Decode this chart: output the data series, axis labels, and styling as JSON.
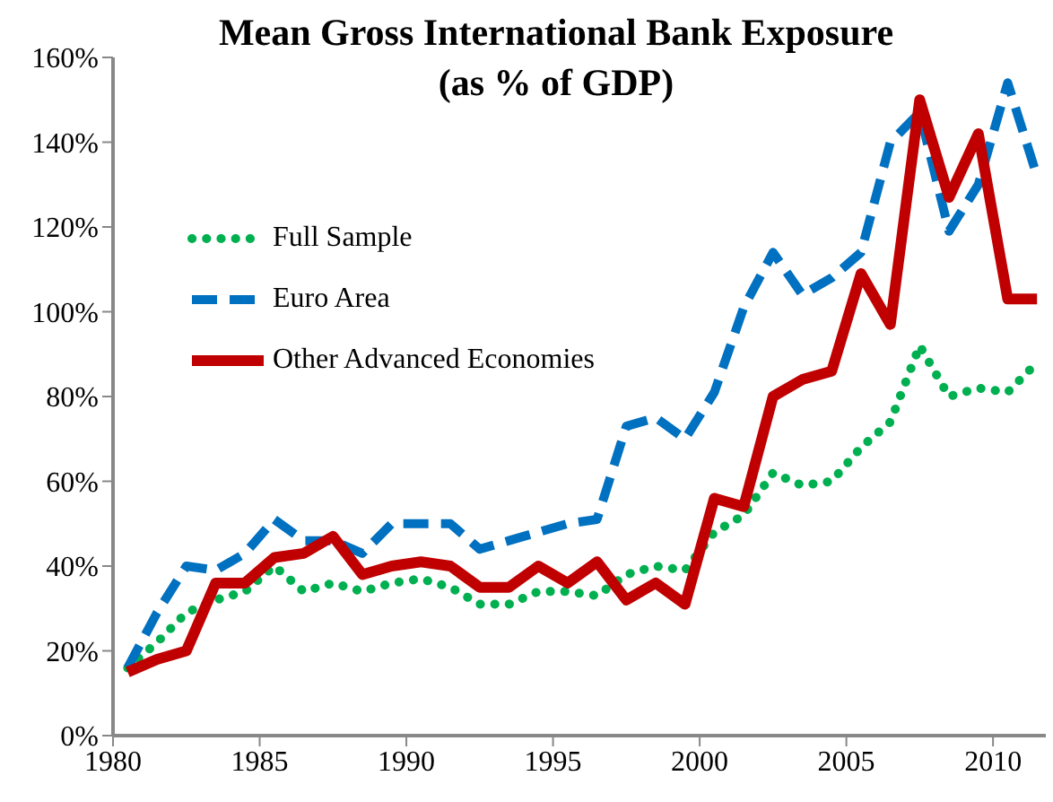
{
  "chart_data": {
    "type": "line",
    "title": "Mean Gross International Bank Exposure",
    "subtitle": "(as % of GDP)",
    "x": [
      1980.5,
      1981.5,
      1982.5,
      1983.5,
      1984.5,
      1985.5,
      1986.5,
      1987.5,
      1988.5,
      1989.5,
      1990.5,
      1991.5,
      1992.5,
      1993.5,
      1994.5,
      1995.5,
      1996.5,
      1997.5,
      1998.5,
      1999.5,
      2000.5,
      2001.5,
      2002.5,
      2003.5,
      2004.5,
      2005.5,
      2006.5,
      2007.5,
      2008.5,
      2009.5,
      2010.5,
      2011.5
    ],
    "series": [
      {
        "name": "Full Sample",
        "color": "#00b050",
        "line_style": "dotted",
        "values": [
          16,
          22,
          29,
          32,
          34,
          40,
          34,
          36,
          34,
          36,
          37,
          35,
          31,
          31,
          34,
          34,
          33,
          38,
          40,
          39,
          48,
          52,
          62,
          59,
          60,
          68,
          74,
          92,
          80,
          82,
          81,
          88
        ]
      },
      {
        "name": "Euro Area",
        "color": "#0070c0",
        "line_style": "dashed",
        "values": [
          16,
          29,
          40,
          39,
          43,
          51,
          46,
          46,
          43,
          50,
          50,
          50,
          44,
          46,
          48,
          50,
          51,
          73,
          75,
          70,
          81,
          101,
          114,
          104,
          108,
          114,
          140,
          147,
          119,
          130,
          154,
          132
        ]
      },
      {
        "name": "Other Advanced Economies",
        "color": "#c00000",
        "line_style": "solid",
        "values": [
          15,
          18,
          20,
          36,
          36,
          42,
          43,
          47,
          38,
          40,
          41,
          40,
          35,
          35,
          40,
          36,
          41,
          32,
          36,
          31,
          56,
          54,
          80,
          84,
          86,
          109,
          97,
          150,
          127,
          142,
          103,
          103
        ]
      }
    ],
    "xlim": [
      1980,
      2011.8
    ],
    "xticks": [
      1980,
      1985,
      1990,
      1995,
      2000,
      2005,
      2010
    ],
    "ylim": [
      0,
      160
    ],
    "yticks": [
      {
        "value": 0,
        "label": "0%"
      },
      {
        "value": 20,
        "label": "20%"
      },
      {
        "value": 40,
        "label": "40%"
      },
      {
        "value": 60,
        "label": "60%"
      },
      {
        "value": 80,
        "label": "80%"
      },
      {
        "value": 100,
        "label": "100%"
      },
      {
        "value": 120,
        "label": "120%"
      },
      {
        "value": 140,
        "label": "140%"
      },
      {
        "value": 160,
        "label": "160%"
      }
    ],
    "grid": false,
    "legend": "top left",
    "marker": "none"
  }
}
